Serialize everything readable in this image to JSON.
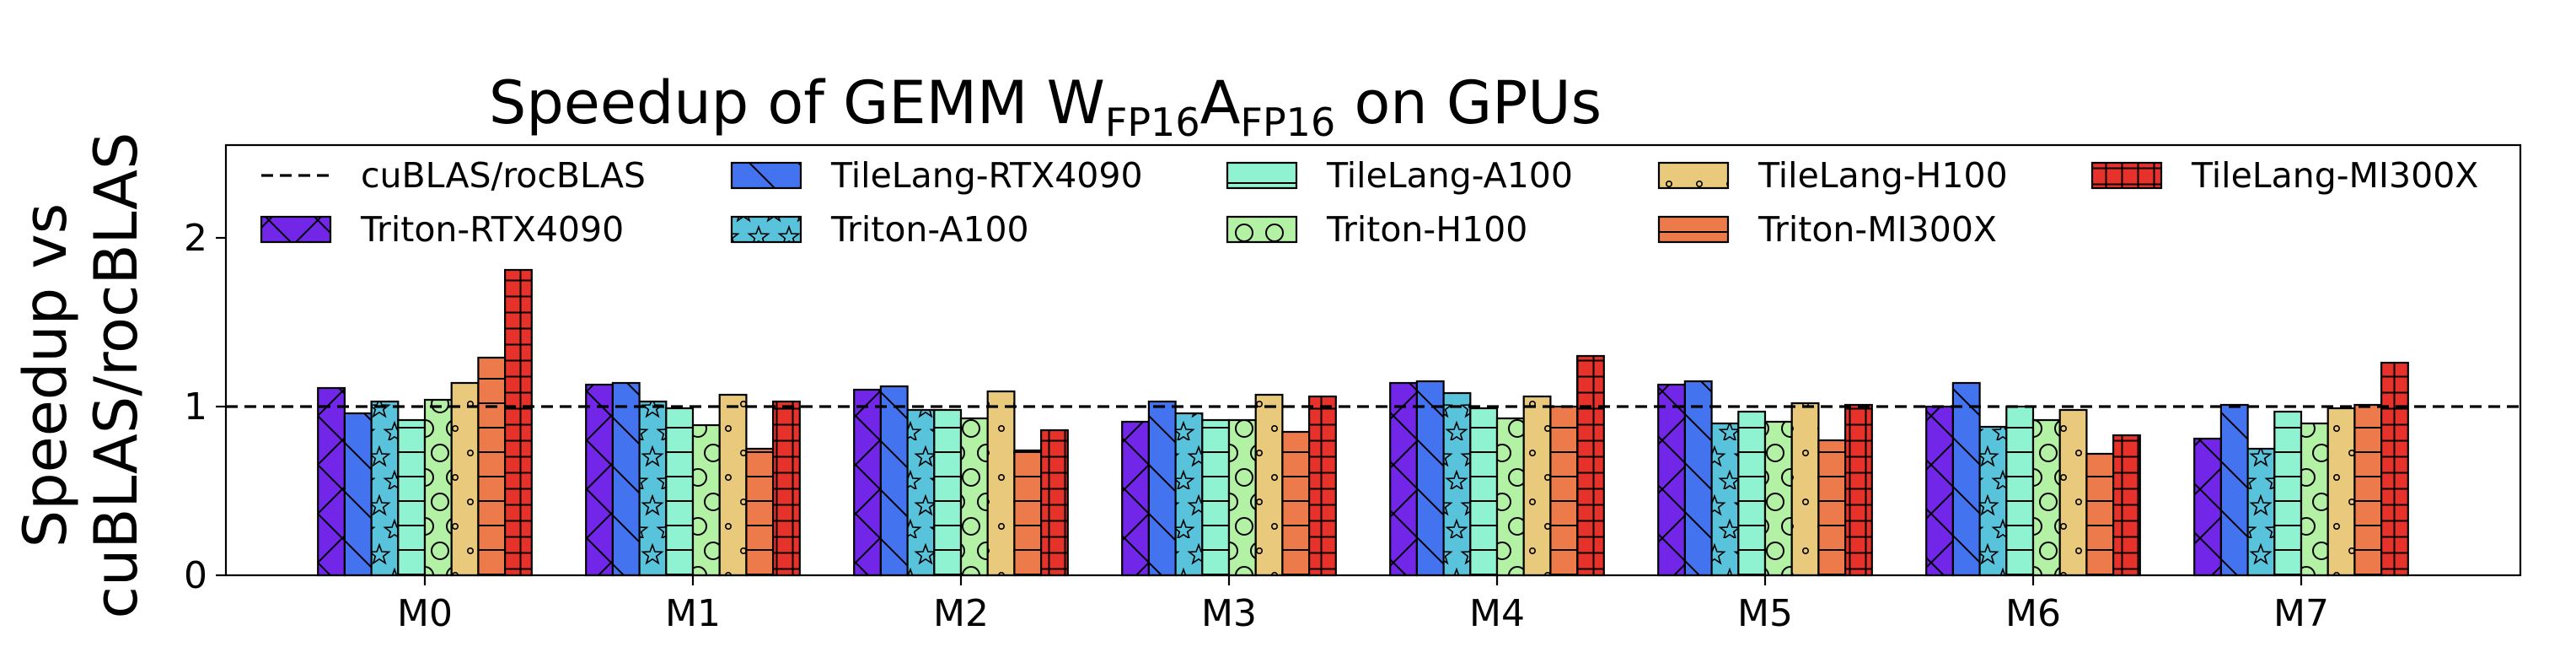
{
  "chart_data": {
    "type": "bar",
    "title_parts": [
      "Speedup of GEMM W",
      "FP16",
      "A",
      "FP16",
      " on GPUs"
    ],
    "ylabel_lines": [
      "Speedup vs",
      "cuBLAS/rocBLAS"
    ],
    "xlabel": "",
    "categories": [
      "M0",
      "M1",
      "M2",
      "M3",
      "M4",
      "M5",
      "M6",
      "M7"
    ],
    "ylim": [
      0,
      2.55
    ],
    "yticks": [
      "0",
      "1",
      "2"
    ],
    "yticks_values": [
      0,
      1,
      2
    ],
    "reference_line": {
      "name": "cuBLAS/rocBLAS",
      "value": 1.0,
      "style": "dashed"
    },
    "grid": false,
    "legend_placement": "top",
    "series": [
      {
        "name": "Triton-RTX4090",
        "color": "#7226e8",
        "hatch": "x",
        "values": [
          1.11,
          1.13,
          1.1,
          0.91,
          1.14,
          1.13,
          1.0,
          0.81
        ]
      },
      {
        "name": "TileLang-RTX4090",
        "color": "#4473f0",
        "hatch": "\\",
        "values": [
          0.96,
          1.14,
          1.12,
          1.03,
          1.15,
          1.15,
          1.14,
          1.01
        ]
      },
      {
        "name": "Triton-A100",
        "color": "#59c3dc",
        "hatch": "*",
        "values": [
          1.03,
          1.03,
          0.98,
          0.96,
          1.08,
          0.9,
          0.88,
          0.75
        ]
      },
      {
        "name": "TileLang-A100",
        "color": "#8ff2d1",
        "hatch": "-",
        "values": [
          0.92,
          0.99,
          0.98,
          0.92,
          0.99,
          0.97,
          1.0,
          0.97
        ]
      },
      {
        "name": "Triton-H100",
        "color": "#b3f1a4",
        "hatch": "O",
        "values": [
          1.04,
          0.89,
          0.93,
          0.92,
          0.93,
          0.91,
          0.92,
          0.9
        ]
      },
      {
        "name": "TileLang-H100",
        "color": "#e9c97b",
        "hatch": ".",
        "values": [
          1.14,
          1.07,
          1.09,
          1.07,
          1.06,
          1.02,
          0.98,
          0.99
        ]
      },
      {
        "name": "Triton-MI300X",
        "color": "#ec7a4a",
        "hatch": "-",
        "values": [
          1.29,
          0.75,
          0.74,
          0.85,
          1.0,
          0.8,
          0.72,
          1.01
        ]
      },
      {
        "name": "TileLang-MI300X",
        "color": "#e6322b",
        "hatch": "+",
        "values": [
          1.81,
          1.03,
          0.86,
          1.06,
          1.3,
          1.01,
          0.83,
          1.26
        ]
      }
    ]
  }
}
